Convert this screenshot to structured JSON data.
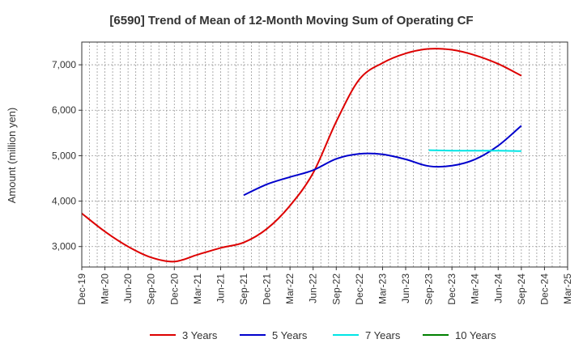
{
  "chart_data": {
    "type": "line",
    "title": "[6590]  Trend of Mean of 12-Month Moving Sum of Operating CF",
    "xlabel": "",
    "ylabel": "Amount (million yen)",
    "ylim": [
      2550,
      7500
    ],
    "yticks": [
      3000,
      4000,
      5000,
      6000,
      7000
    ],
    "ytick_labels": [
      "3,000",
      "4,000",
      "5,000",
      "6,000",
      "7,000"
    ],
    "categories": [
      "Dec-19",
      "Mar-20",
      "Jun-20",
      "Sep-20",
      "Dec-20",
      "Mar-21",
      "Jun-21",
      "Sep-21",
      "Dec-21",
      "Mar-22",
      "Jun-22",
      "Sep-22",
      "Dec-22",
      "Mar-23",
      "Jun-23",
      "Sep-23",
      "Dec-23",
      "Mar-24",
      "Jun-24",
      "Sep-24",
      "Dec-24",
      "Mar-25"
    ],
    "grid": true,
    "legend_position": "bottom",
    "series": [
      {
        "name": "3 Years",
        "color": "#dd0000",
        "values": [
          3730,
          3330,
          3000,
          2760,
          2670,
          2820,
          2970,
          3090,
          3390,
          3900,
          4620,
          5750,
          6680,
          7040,
          7250,
          7350,
          7330,
          7210,
          7020,
          6760,
          null,
          null
        ]
      },
      {
        "name": "5 Years",
        "color": "#0000cc",
        "values": [
          null,
          null,
          null,
          null,
          null,
          null,
          null,
          4130,
          4370,
          4530,
          4680,
          4930,
          5040,
          5030,
          4920,
          4770,
          4780,
          4920,
          5220,
          5660,
          null,
          null
        ]
      },
      {
        "name": "7 Years",
        "color": "#00e5e5",
        "values": [
          null,
          null,
          null,
          null,
          null,
          null,
          null,
          null,
          null,
          null,
          null,
          null,
          null,
          null,
          null,
          5120,
          5110,
          5110,
          5110,
          5100,
          null,
          null
        ]
      },
      {
        "name": "10 Years",
        "color": "#008000",
        "values": [
          null,
          null,
          null,
          null,
          null,
          null,
          null,
          null,
          null,
          null,
          null,
          null,
          null,
          null,
          null,
          null,
          null,
          null,
          null,
          null,
          null,
          null
        ]
      }
    ]
  }
}
